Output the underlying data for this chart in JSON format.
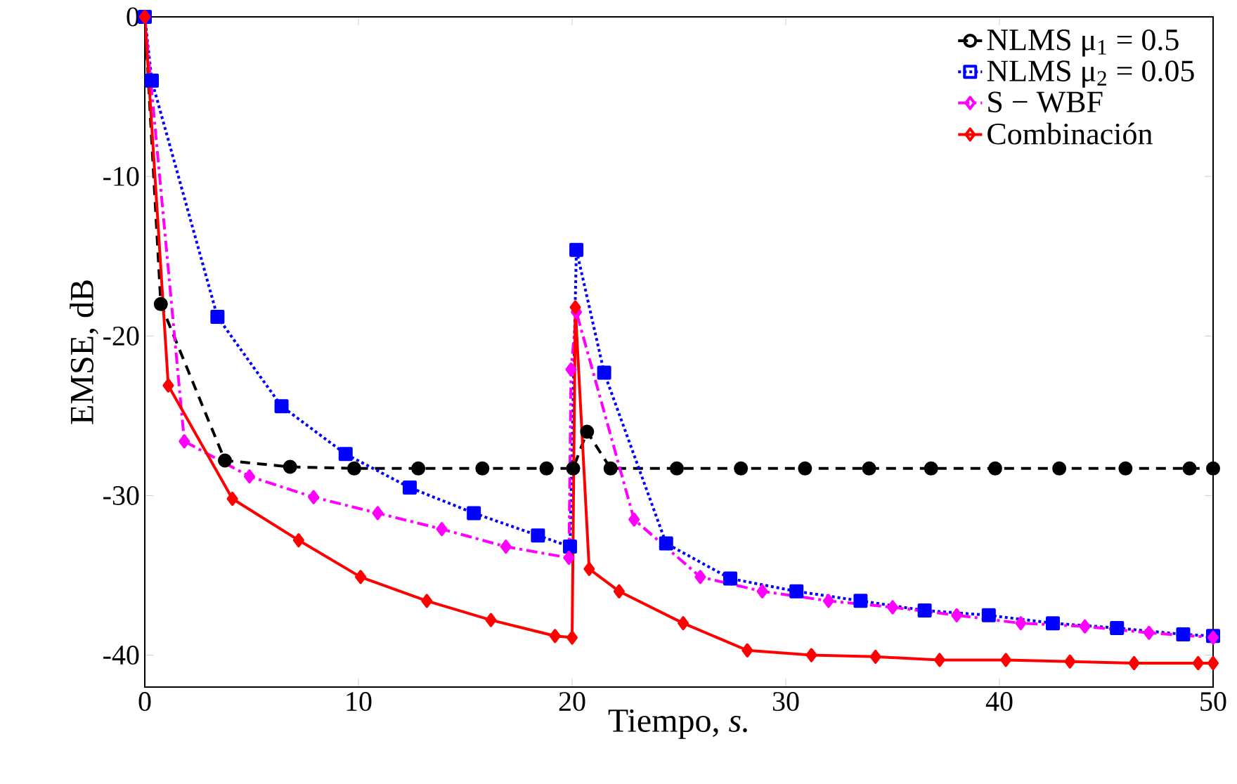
{
  "chart_data": {
    "type": "line",
    "xlabel": "Tiempo, *s.*",
    "ylabel": "EMSE, dB",
    "xlim": [
      0,
      50
    ],
    "ylim": [
      -42,
      0
    ],
    "xticks": [
      0,
      10,
      20,
      30,
      40,
      50
    ],
    "yticks": [
      -40,
      -30,
      -20,
      -10,
      0
    ],
    "grid": false,
    "legend": "top right",
    "series": [
      {
        "name": "NLMS μ$_{1}$ = 0.5",
        "color": "#000000",
        "marker": "circle",
        "line_style": "dashed",
        "x": [
          0,
          0.75,
          3.75,
          6.8,
          9.8,
          12.8,
          15.8,
          18.8,
          20.05,
          20.2,
          20.7,
          21.8,
          24.9,
          27.9,
          30.9,
          33.9,
          36.8,
          39.8,
          42.8,
          45.9,
          48.9,
          50
        ],
        "values": [
          0,
          -18,
          -27.8,
          -28.2,
          -28.3,
          -28.3,
          -28.3,
          -28.3,
          -28.3,
          null,
          -26,
          -28.3,
          -28.3,
          -28.3,
          -28.3,
          -28.3,
          -28.3,
          -28.3,
          -28.3,
          -28.3,
          -28.3,
          -28.3
        ]
      },
      {
        "name": "NLMS μ$_{2}$ = 0.05",
        "color": "#0000ff",
        "marker": "square",
        "line_style": "dotted",
        "x": [
          0,
          0.33,
          3.4,
          6.4,
          9.4,
          12.4,
          15.4,
          18.4,
          19.9,
          20.2,
          21.5,
          24.4,
          27.4,
          30.5,
          33.5,
          36.5,
          39.5,
          42.5,
          45.5,
          48.6,
          50
        ],
        "values": [
          0,
          -4,
          -18.8,
          -24.4,
          -27.4,
          -29.5,
          -31.1,
          -32.5,
          -33.2,
          -14.6,
          -22.3,
          -33,
          -35.2,
          -36,
          -36.6,
          -37.2,
          -37.5,
          -38,
          -38.3,
          -38.7,
          -38.8
        ]
      },
      {
        "name": "S − WBF",
        "color": "#ff00ff",
        "marker": "diamond",
        "line_style": "dashdot",
        "x": [
          0,
          1.85,
          4.9,
          7.9,
          10.9,
          13.9,
          16.9,
          19.85,
          19.95,
          20.2,
          22.9,
          26,
          28.9,
          32,
          35,
          38,
          41,
          44,
          47,
          50
        ],
        "values": [
          0,
          -26.6,
          -28.8,
          -30.1,
          -31.1,
          -32.1,
          -33.2,
          -33.9,
          -22.1,
          -18.5,
          -31.5,
          -35.1,
          -36,
          -36.6,
          -37,
          -37.5,
          -38,
          -38.2,
          -38.6,
          -38.9
        ]
      },
      {
        "name": "Combinación",
        "color": "#ff0000",
        "marker": "diamond",
        "line_style": "solid",
        "x": [
          0,
          1.1,
          4.1,
          7.2,
          10.1,
          13.2,
          16.2,
          19.2,
          20,
          20.15,
          20.8,
          22.2,
          25.2,
          28.2,
          31.2,
          34.2,
          37.2,
          40.3,
          43.3,
          46.3,
          49.3,
          50
        ],
        "values": [
          0,
          -23.1,
          -30.2,
          -32.8,
          -35.1,
          -36.6,
          -37.8,
          -38.8,
          -38.9,
          -18.2,
          -34.6,
          -36,
          -38,
          -39.7,
          -40,
          -40.1,
          -40.3,
          -40.3,
          -40.4,
          -40.5,
          -40.5,
          -40.5
        ]
      }
    ]
  }
}
